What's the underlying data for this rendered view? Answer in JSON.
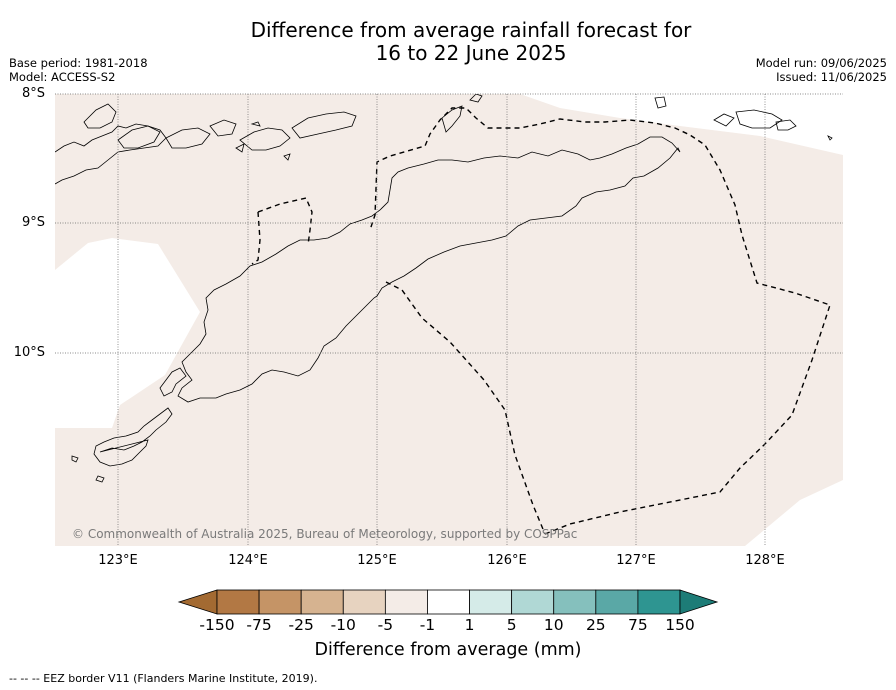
{
  "title_line1": "Difference from average rainfall forecast for",
  "title_line2": "16 to 22 June 2025",
  "base_period": "Base period: 1981-2018",
  "model": "Model: ACCESS-S2",
  "model_run": "Model run: 09/06/2025",
  "issued": "Issued: 11/06/2025",
  "lat_labels": [
    "8°S",
    "9°S",
    "10°S"
  ],
  "lon_labels": [
    "123°E",
    "124°E",
    "125°E",
    "126°E",
    "127°E",
    "128°E"
  ],
  "copyright": "© Commonwealth of Australia 2025, Bureau of Meteorology, supported by COSPPac",
  "colorbar": {
    "title": "Difference from average (mm)",
    "ticks": [
      "-150",
      "-75",
      "-25",
      "-10",
      "-5",
      "-1",
      "1",
      "5",
      "10",
      "25",
      "75",
      "150"
    ],
    "colors": [
      "#a36a32",
      "#b27844",
      "#c59466",
      "#d6b390",
      "#e7d3c0",
      "#f4ece7",
      "#ffffff",
      "#d5ebe8",
      "#b0d8d5",
      "#85c0bd",
      "#5aa8a6",
      "#2e9591",
      "#1d7c77"
    ]
  },
  "footer": "--  --  -- EEZ border V11 (Flanders Marine Institute, 2019).",
  "map": {
    "fill_color": "#f4ece7",
    "eez_style": "dashed"
  }
}
